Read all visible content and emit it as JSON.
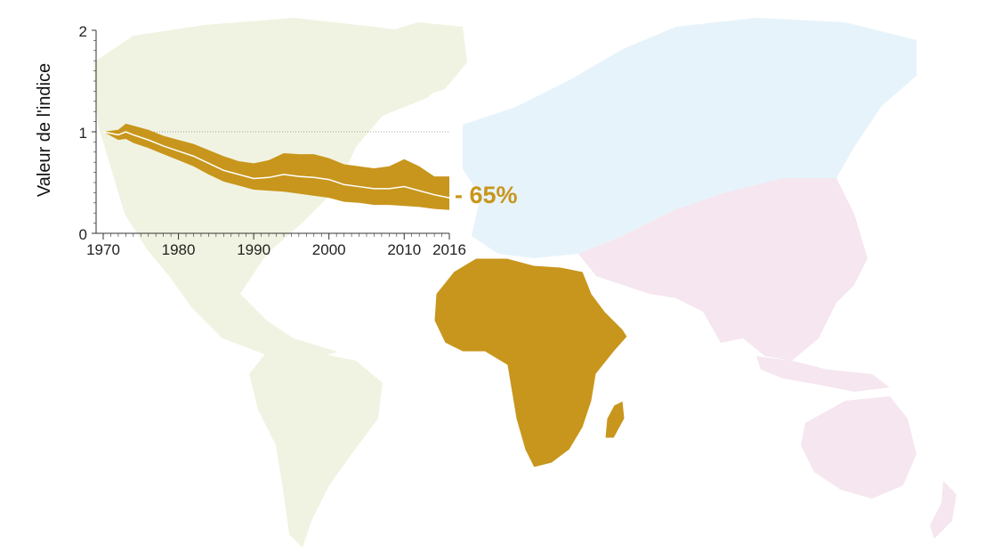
{
  "colors": {
    "africa": "#c8961c",
    "band": "#c8961c",
    "trend_line": "#ffffff",
    "americas": "#f1f3e2",
    "europe_asia_north": "#e7f3fb",
    "asia_pacific": "#f6e6ef",
    "axis": "#333333",
    "reference_line": "#888888"
  },
  "chart_data": {
    "type": "area",
    "title": "",
    "ylabel": "Valeur de l'indice",
    "xlabel": "",
    "xlim": [
      1970,
      2016
    ],
    "ylim": [
      0,
      2
    ],
    "x_ticks": [
      1970,
      1980,
      1990,
      2000,
      2010,
      2016
    ],
    "y_ticks": [
      0,
      1,
      2
    ],
    "reference_line": 1,
    "grid": false,
    "series": [
      {
        "x": [
          1970,
          1972,
          1973,
          1974,
          1976,
          1978,
          1980,
          1982,
          1984,
          1986,
          1988,
          1990,
          1992,
          1994,
          1996,
          1998,
          2000,
          2002,
          2004,
          2006,
          2008,
          2010,
          2012,
          2014,
          2016
        ],
        "index": [
          1.0,
          0.97,
          1.0,
          0.97,
          0.92,
          0.86,
          0.81,
          0.76,
          0.69,
          0.62,
          0.58,
          0.54,
          0.55,
          0.58,
          0.56,
          0.55,
          0.53,
          0.48,
          0.46,
          0.44,
          0.44,
          0.46,
          0.42,
          0.38,
          0.35
        ],
        "lower": [
          1.0,
          0.92,
          0.93,
          0.89,
          0.84,
          0.78,
          0.72,
          0.66,
          0.58,
          0.51,
          0.47,
          0.43,
          0.42,
          0.41,
          0.39,
          0.37,
          0.35,
          0.31,
          0.3,
          0.28,
          0.28,
          0.27,
          0.26,
          0.24,
          0.23
        ],
        "upper": [
          1.0,
          1.02,
          1.08,
          1.06,
          1.02,
          0.96,
          0.92,
          0.88,
          0.82,
          0.76,
          0.71,
          0.69,
          0.72,
          0.79,
          0.78,
          0.78,
          0.74,
          0.68,
          0.66,
          0.64,
          0.66,
          0.73,
          0.66,
          0.56,
          0.56
        ]
      }
    ],
    "annotation": "- 65%"
  }
}
